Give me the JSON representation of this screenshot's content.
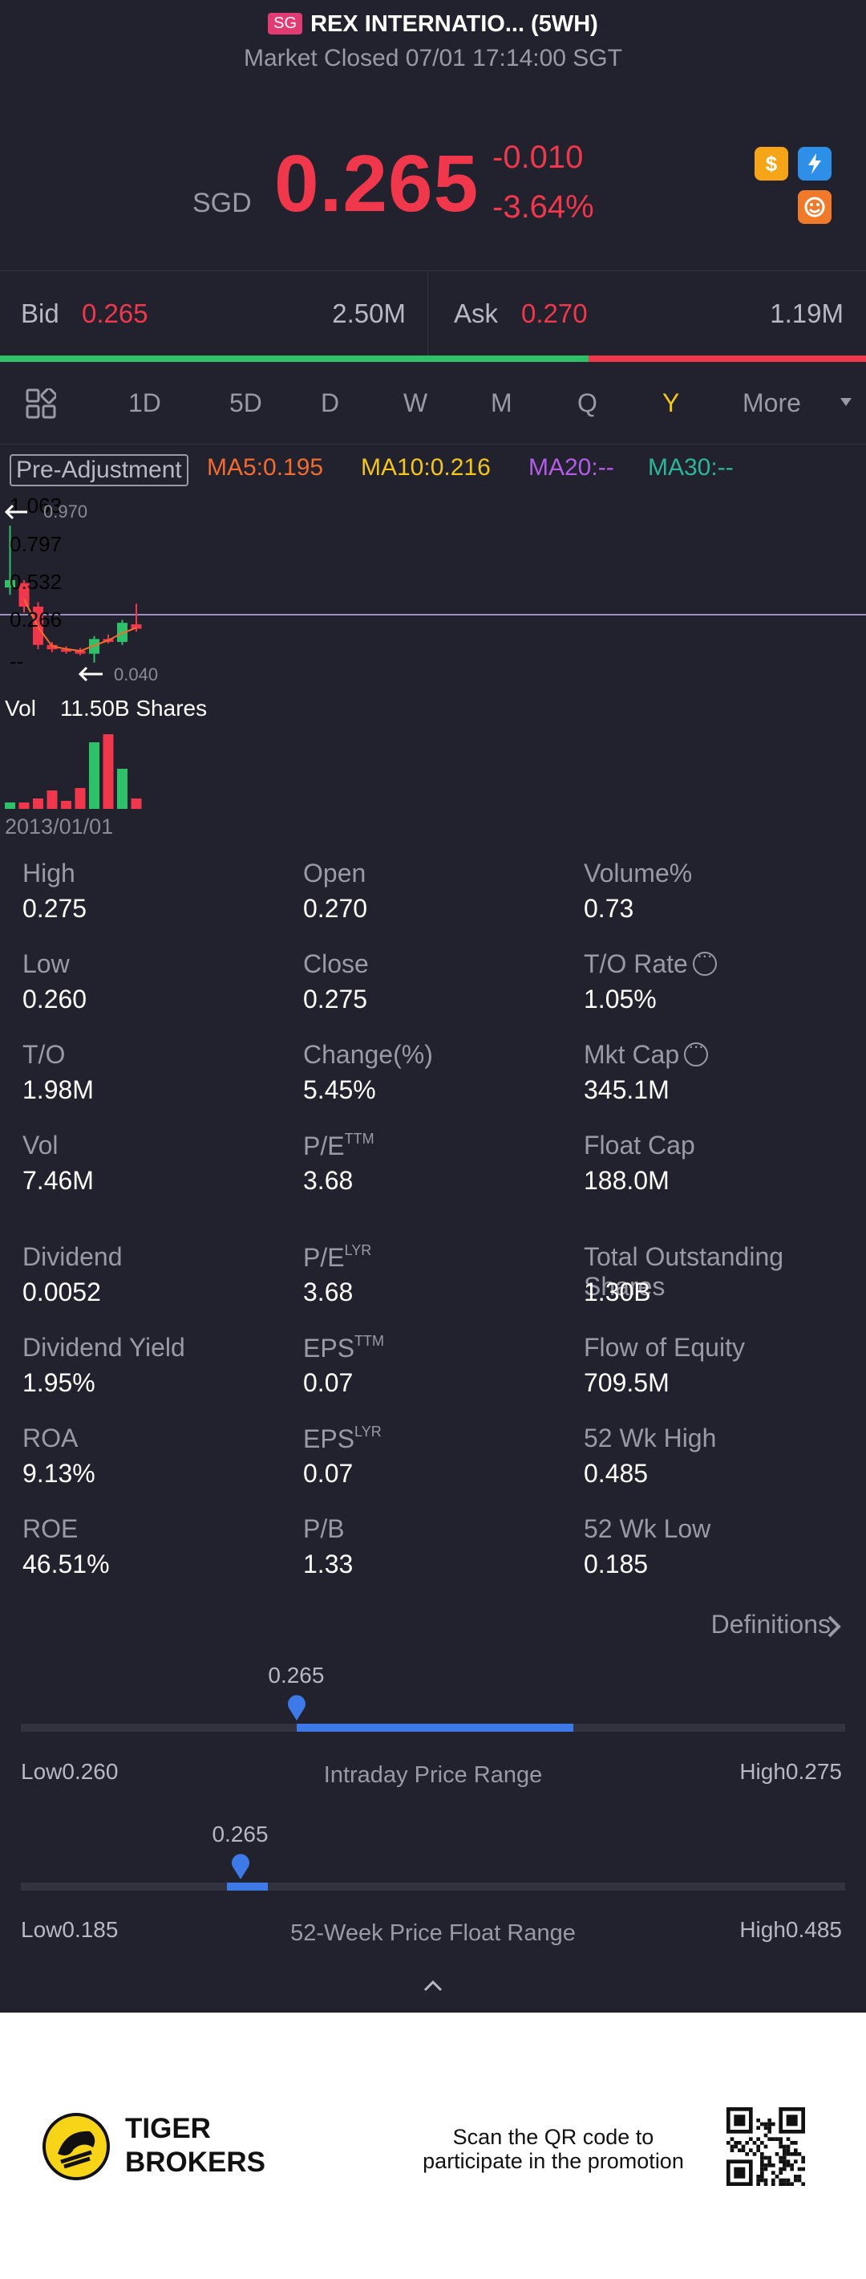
{
  "header": {
    "market": "SG",
    "title": "REX INTERNATIO... (5WH)",
    "status": "Market Closed 07/01 17:14:00 SGT"
  },
  "quote": {
    "currency": "SGD",
    "price": "0.265",
    "change": "-0.010",
    "change_pct": "-3.64%",
    "accent_color": "#f0374b"
  },
  "icons": [
    "dollar-icon",
    "lightning-icon",
    "mood-icon"
  ],
  "orderbook": {
    "bid_label": "Bid",
    "bid_price": "0.265",
    "bid_size": "2.50M",
    "ask_label": "Ask",
    "ask_price": "0.270",
    "ask_size": "1.19M",
    "bid_ratio": 0.68
  },
  "tabs": {
    "items": [
      "1D",
      "5D",
      "D",
      "W",
      "M",
      "Q",
      "Y",
      "More"
    ],
    "selected": "Y"
  },
  "ma": {
    "adjust": "Pre-Adjustment",
    "ma5": "MA5:0.195",
    "ma10": "MA10:0.216",
    "ma20": "MA20:--",
    "ma30": "MA30:--",
    "colors": {
      "ma5": "#f46b2d",
      "ma10": "#f5c518",
      "ma20": "#b45be8",
      "ma30": "#2bb59a"
    }
  },
  "chart": {
    "axis_labels": [
      "1.063",
      "0.797",
      "0.532",
      "0.266",
      "--"
    ],
    "max_marker": "0.970",
    "min_marker": "0.040",
    "vol_label": "Vol",
    "vol_value": "11.50B Shares",
    "date": "2013/01/01"
  },
  "chart_data": {
    "type": "candlestick",
    "period": "Y",
    "y_axis": [
      1.063,
      0.797,
      0.532,
      0.266
    ],
    "candles": [
      {
        "o": 0.55,
        "h": 0.97,
        "l": 0.5,
        "c": 0.6,
        "dir": "up"
      },
      {
        "o": 0.58,
        "h": 0.6,
        "l": 0.38,
        "c": 0.42,
        "dir": "down"
      },
      {
        "o": 0.42,
        "h": 0.45,
        "l": 0.13,
        "c": 0.16,
        "dir": "down"
      },
      {
        "o": 0.16,
        "h": 0.18,
        "l": 0.11,
        "c": 0.13,
        "dir": "down"
      },
      {
        "o": 0.13,
        "h": 0.15,
        "l": 0.1,
        "c": 0.12,
        "dir": "down"
      },
      {
        "o": 0.12,
        "h": 0.14,
        "l": 0.09,
        "c": 0.1,
        "dir": "down"
      },
      {
        "o": 0.1,
        "h": 0.22,
        "l": 0.04,
        "c": 0.2,
        "dir": "up"
      },
      {
        "o": 0.2,
        "h": 0.23,
        "l": 0.17,
        "c": 0.18,
        "dir": "down"
      },
      {
        "o": 0.18,
        "h": 0.33,
        "l": 0.16,
        "c": 0.31,
        "dir": "up"
      },
      {
        "o": 0.3,
        "h": 0.44,
        "l": 0.25,
        "c": 0.27,
        "dir": "down"
      }
    ],
    "volumes": [
      0.08,
      0.08,
      0.13,
      0.23,
      0.1,
      0.26,
      0.83,
      0.93,
      0.5,
      0.13
    ],
    "current_line": 0.265
  },
  "stats": [
    {
      "label": "High",
      "value": "0.275"
    },
    {
      "label": "Open",
      "value": "0.270"
    },
    {
      "label": "Volume%",
      "value": "0.73"
    },
    {
      "label": "Low",
      "value": "0.260"
    },
    {
      "label": "Close",
      "value": "0.275"
    },
    {
      "label": "T/O Rate",
      "value": "1.05%",
      "info": true
    },
    {
      "label": "T/O",
      "value": "1.98M"
    },
    {
      "label": "Change(%)",
      "value": "5.45%"
    },
    {
      "label": "Mkt Cap",
      "value": "345.1M",
      "info": true
    },
    {
      "label": "Vol",
      "value": "7.46M"
    },
    {
      "label": "P/E",
      "sup": "TTM",
      "value": "3.68"
    },
    {
      "label": "Float Cap",
      "value": "188.0M"
    },
    {
      "label": "Dividend",
      "value": "0.0052"
    },
    {
      "label": "P/E",
      "sup": "LYR",
      "value": "3.68"
    },
    {
      "label": "Total Outstanding Shares",
      "value": "1.30B"
    },
    {
      "label": "Dividend Yield",
      "value": "1.95%"
    },
    {
      "label": "EPS",
      "sup": "TTM",
      "value": "0.07"
    },
    {
      "label": "Flow of Equity",
      "value": "709.5M"
    },
    {
      "label": "ROA",
      "value": "9.13%"
    },
    {
      "label": "EPS",
      "sup": "LYR",
      "value": "0.07"
    },
    {
      "label": "52 Wk High",
      "value": "0.485"
    },
    {
      "label": "ROE",
      "value": "46.51%"
    },
    {
      "label": "P/B",
      "value": "1.33"
    },
    {
      "label": "52 Wk Low",
      "value": "0.185"
    }
  ],
  "definitions": "Definitions",
  "intraday": {
    "current": "0.265",
    "low_label": "Low",
    "low": "0.260",
    "high_label": "High",
    "high": "0.275",
    "title": "Intraday Price Range",
    "pin_fraction": 0.335,
    "fill_start": 0.335,
    "fill_end": 0.67
  },
  "week52": {
    "current": "0.265",
    "low_label": "Low",
    "low": "0.185",
    "high_label": "High",
    "high": "0.485",
    "title": "52-Week Price Float Range",
    "pin_fraction": 0.267,
    "fill_start": 0.25,
    "fill_end": 0.3
  },
  "footer": {
    "brand_line1": "TIGER",
    "brand_line2": "BROKERS",
    "qr_line1": "Scan the QR code to",
    "qr_line2": "participate in the promotion"
  }
}
